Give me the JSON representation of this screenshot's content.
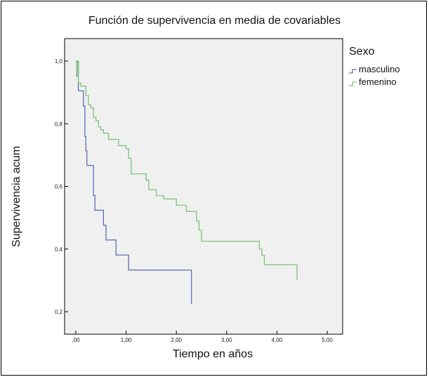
{
  "chart_data": {
    "type": "line",
    "title": "Función de supervivencia en media de covariables",
    "xlabel": "Tiempo en años",
    "ylabel": "Supervivencia acum",
    "xlim": [
      0,
      5
    ],
    "ylim": [
      0.2,
      1.0
    ],
    "x_ticks": [
      ",00",
      "1,00",
      "2,00",
      "3,00",
      "4,00",
      "5,00"
    ],
    "y_ticks": [
      "1,0",
      "0,8",
      "0,6",
      "0,4",
      "0,2"
    ],
    "grid": false,
    "plot_background": "#f0f0f0",
    "legend": {
      "title": "Sexo",
      "position": "right"
    },
    "step": true,
    "series": [
      {
        "name": "masculino",
        "color": "#5b6fb5",
        "x": [
          0.0,
          0.02,
          0.02,
          0.05,
          0.1,
          0.15,
          0.18,
          0.2,
          0.22,
          0.35,
          0.38,
          0.45,
          0.55,
          0.6,
          0.8,
          1.05,
          2.3,
          2.3
        ],
        "y": [
          1.0,
          0.95,
          1.0,
          0.905,
          0.905,
          0.857,
          0.76,
          0.714,
          0.667,
          0.571,
          0.524,
          0.524,
          0.476,
          0.429,
          0.381,
          0.333,
          0.333,
          0.225
        ]
      },
      {
        "name": "femenino",
        "color": "#7cc47a",
        "x": [
          0.0,
          0.02,
          0.03,
          0.05,
          0.1,
          0.2,
          0.25,
          0.3,
          0.35,
          0.4,
          0.45,
          0.5,
          0.55,
          0.65,
          0.85,
          1.0,
          1.05,
          1.1,
          1.4,
          1.45,
          1.6,
          1.75,
          2.0,
          2.2,
          2.4,
          2.45,
          2.5,
          3.65,
          3.7,
          3.75,
          4.4,
          4.4
        ],
        "y": [
          1.0,
          0.96,
          1.0,
          0.93,
          0.92,
          0.89,
          0.86,
          0.85,
          0.82,
          0.81,
          0.79,
          0.78,
          0.77,
          0.75,
          0.73,
          0.72,
          0.69,
          0.64,
          0.62,
          0.59,
          0.57,
          0.56,
          0.54,
          0.52,
          0.49,
          0.46,
          0.425,
          0.4,
          0.38,
          0.35,
          0.35,
          0.3
        ]
      }
    ]
  }
}
